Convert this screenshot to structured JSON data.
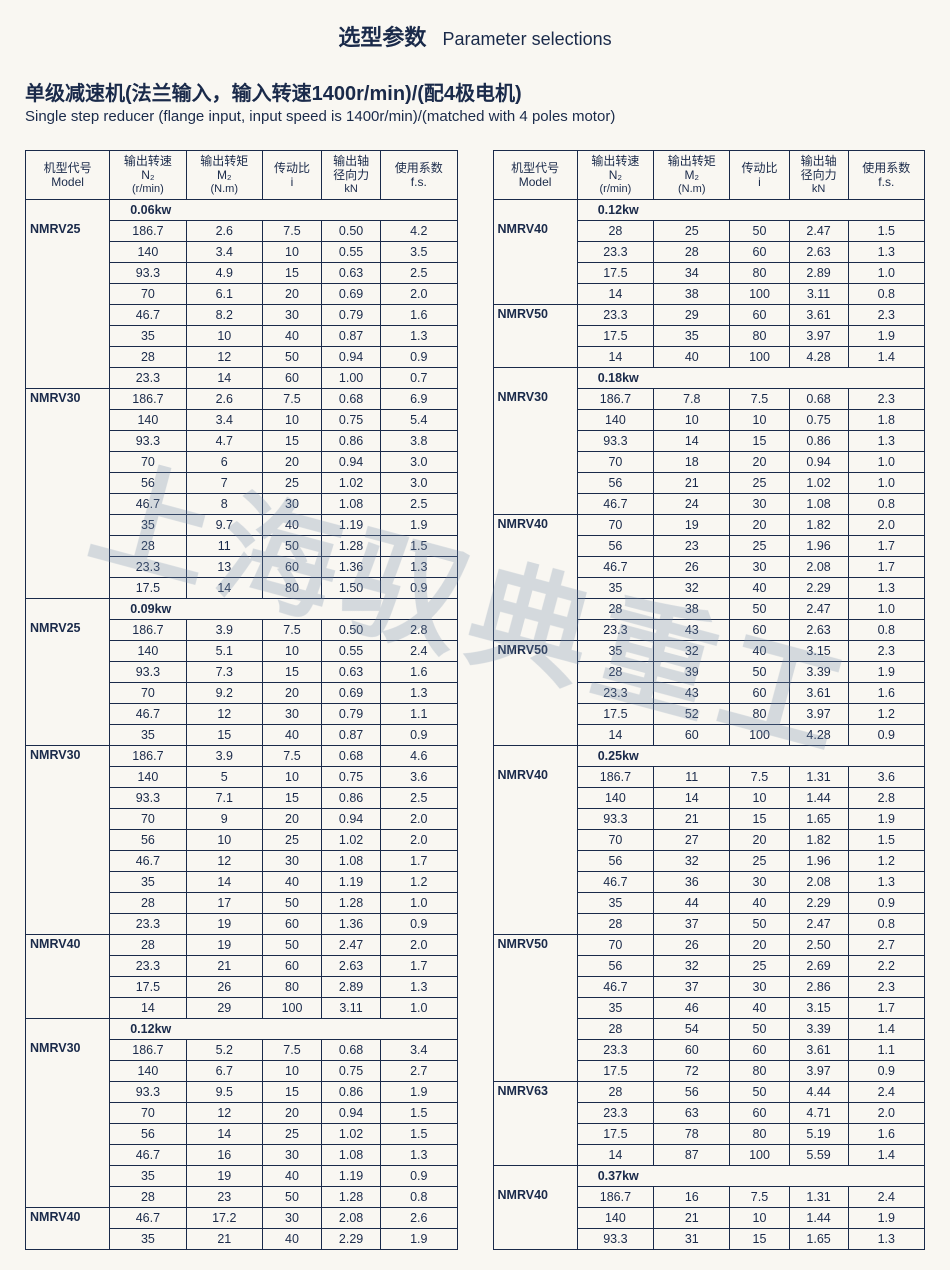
{
  "title_cn": "选型参数",
  "title_en": "Parameter selections",
  "sub_cn": "单级减速机(法兰输入，输入转速1400r/min)/(配4极电机)",
  "sub_en": "Single step reducer (flange input, input speed is 1400r/min)/(matched with 4 poles motor)",
  "watermark": "上海驭典重工",
  "headers": [
    {
      "cn": "机型代号",
      "en": "Model",
      "unit": ""
    },
    {
      "cn": "输出转速",
      "en": "N₂",
      "unit": "(r/min)"
    },
    {
      "cn": "输出转矩",
      "en": "M₂",
      "unit": "(N.m)"
    },
    {
      "cn": "传动比",
      "en": "i",
      "unit": ""
    },
    {
      "cn": "输出轴",
      "en": "径向力",
      "unit": "kN"
    },
    {
      "cn": "使用系数",
      "en": "f.s.",
      "unit": ""
    }
  ],
  "left": [
    {
      "type": "power",
      "label": "0.06kw"
    },
    {
      "type": "row",
      "model": "NMRV25",
      "n": "186.7",
      "m": "2.6",
      "i": "7.5",
      "kn": "0.50",
      "fs": "4.2"
    },
    {
      "type": "row",
      "model": "",
      "n": "140",
      "m": "3.4",
      "i": "10",
      "kn": "0.55",
      "fs": "3.5"
    },
    {
      "type": "row",
      "model": "",
      "n": "93.3",
      "m": "4.9",
      "i": "15",
      "kn": "0.63",
      "fs": "2.5"
    },
    {
      "type": "row",
      "model": "",
      "n": "70",
      "m": "6.1",
      "i": "20",
      "kn": "0.69",
      "fs": "2.0"
    },
    {
      "type": "row",
      "model": "",
      "n": "46.7",
      "m": "8.2",
      "i": "30",
      "kn": "0.79",
      "fs": "1.6"
    },
    {
      "type": "row",
      "model": "",
      "n": "35",
      "m": "10",
      "i": "40",
      "kn": "0.87",
      "fs": "1.3"
    },
    {
      "type": "row",
      "model": "",
      "n": "28",
      "m": "12",
      "i": "50",
      "kn": "0.94",
      "fs": "0.9"
    },
    {
      "type": "row",
      "model": "",
      "n": "23.3",
      "m": "14",
      "i": "60",
      "kn": "1.00",
      "fs": "0.7",
      "last": true
    },
    {
      "type": "row",
      "model": "NMRV30",
      "n": "186.7",
      "m": "2.6",
      "i": "7.5",
      "kn": "0.68",
      "fs": "6.9"
    },
    {
      "type": "row",
      "model": "",
      "n": "140",
      "m": "3.4",
      "i": "10",
      "kn": "0.75",
      "fs": "5.4"
    },
    {
      "type": "row",
      "model": "",
      "n": "93.3",
      "m": "4.7",
      "i": "15",
      "kn": "0.86",
      "fs": "3.8"
    },
    {
      "type": "row",
      "model": "",
      "n": "70",
      "m": "6",
      "i": "20",
      "kn": "0.94",
      "fs": "3.0"
    },
    {
      "type": "row",
      "model": "",
      "n": "56",
      "m": "7",
      "i": "25",
      "kn": "1.02",
      "fs": "3.0"
    },
    {
      "type": "row",
      "model": "",
      "n": "46.7",
      "m": "8",
      "i": "30",
      "kn": "1.08",
      "fs": "2.5"
    },
    {
      "type": "row",
      "model": "",
      "n": "35",
      "m": "9.7",
      "i": "40",
      "kn": "1.19",
      "fs": "1.9"
    },
    {
      "type": "row",
      "model": "",
      "n": "28",
      "m": "11",
      "i": "50",
      "kn": "1.28",
      "fs": "1.5"
    },
    {
      "type": "row",
      "model": "",
      "n": "23.3",
      "m": "13",
      "i": "60",
      "kn": "1.36",
      "fs": "1.3"
    },
    {
      "type": "row",
      "model": "",
      "n": "17.5",
      "m": "14",
      "i": "80",
      "kn": "1.50",
      "fs": "0.9",
      "last": true
    },
    {
      "type": "power",
      "label": "0.09kw"
    },
    {
      "type": "row",
      "model": "NMRV25",
      "n": "186.7",
      "m": "3.9",
      "i": "7.5",
      "kn": "0.50",
      "fs": "2.8"
    },
    {
      "type": "row",
      "model": "",
      "n": "140",
      "m": "5.1",
      "i": "10",
      "kn": "0.55",
      "fs": "2.4"
    },
    {
      "type": "row",
      "model": "",
      "n": "93.3",
      "m": "7.3",
      "i": "15",
      "kn": "0.63",
      "fs": "1.6"
    },
    {
      "type": "row",
      "model": "",
      "n": "70",
      "m": "9.2",
      "i": "20",
      "kn": "0.69",
      "fs": "1.3"
    },
    {
      "type": "row",
      "model": "",
      "n": "46.7",
      "m": "12",
      "i": "30",
      "kn": "0.79",
      "fs": "1.1"
    },
    {
      "type": "row",
      "model": "",
      "n": "35",
      "m": "15",
      "i": "40",
      "kn": "0.87",
      "fs": "0.9",
      "last": true
    },
    {
      "type": "row",
      "model": "NMRV30",
      "n": "186.7",
      "m": "3.9",
      "i": "7.5",
      "kn": "0.68",
      "fs": "4.6"
    },
    {
      "type": "row",
      "model": "",
      "n": "140",
      "m": "5",
      "i": "10",
      "kn": "0.75",
      "fs": "3.6"
    },
    {
      "type": "row",
      "model": "",
      "n": "93.3",
      "m": "7.1",
      "i": "15",
      "kn": "0.86",
      "fs": "2.5"
    },
    {
      "type": "row",
      "model": "",
      "n": "70",
      "m": "9",
      "i": "20",
      "kn": "0.94",
      "fs": "2.0"
    },
    {
      "type": "row",
      "model": "",
      "n": "56",
      "m": "10",
      "i": "25",
      "kn": "1.02",
      "fs": "2.0"
    },
    {
      "type": "row",
      "model": "",
      "n": "46.7",
      "m": "12",
      "i": "30",
      "kn": "1.08",
      "fs": "1.7"
    },
    {
      "type": "row",
      "model": "",
      "n": "35",
      "m": "14",
      "i": "40",
      "kn": "1.19",
      "fs": "1.2"
    },
    {
      "type": "row",
      "model": "",
      "n": "28",
      "m": "17",
      "i": "50",
      "kn": "1.28",
      "fs": "1.0"
    },
    {
      "type": "row",
      "model": "",
      "n": "23.3",
      "m": "19",
      "i": "60",
      "kn": "1.36",
      "fs": "0.9",
      "last": true
    },
    {
      "type": "row",
      "model": "NMRV40",
      "n": "28",
      "m": "19",
      "i": "50",
      "kn": "2.47",
      "fs": "2.0"
    },
    {
      "type": "row",
      "model": "",
      "n": "23.3",
      "m": "21",
      "i": "60",
      "kn": "2.63",
      "fs": "1.7"
    },
    {
      "type": "row",
      "model": "",
      "n": "17.5",
      "m": "26",
      "i": "80",
      "kn": "2.89",
      "fs": "1.3"
    },
    {
      "type": "row",
      "model": "",
      "n": "14",
      "m": "29",
      "i": "100",
      "kn": "3.11",
      "fs": "1.0",
      "last": true
    },
    {
      "type": "power",
      "label": "0.12kw"
    },
    {
      "type": "row",
      "model": "NMRV30",
      "n": "186.7",
      "m": "5.2",
      "i": "7.5",
      "kn": "0.68",
      "fs": "3.4"
    },
    {
      "type": "row",
      "model": "",
      "n": "140",
      "m": "6.7",
      "i": "10",
      "kn": "0.75",
      "fs": "2.7"
    },
    {
      "type": "row",
      "model": "",
      "n": "93.3",
      "m": "9.5",
      "i": "15",
      "kn": "0.86",
      "fs": "1.9"
    },
    {
      "type": "row",
      "model": "",
      "n": "70",
      "m": "12",
      "i": "20",
      "kn": "0.94",
      "fs": "1.5"
    },
    {
      "type": "row",
      "model": "",
      "n": "56",
      "m": "14",
      "i": "25",
      "kn": "1.02",
      "fs": "1.5"
    },
    {
      "type": "row",
      "model": "",
      "n": "46.7",
      "m": "16",
      "i": "30",
      "kn": "1.08",
      "fs": "1.3"
    },
    {
      "type": "row",
      "model": "",
      "n": "35",
      "m": "19",
      "i": "40",
      "kn": "1.19",
      "fs": "0.9"
    },
    {
      "type": "row",
      "model": "",
      "n": "28",
      "m": "23",
      "i": "50",
      "kn": "1.28",
      "fs": "0.8",
      "last": true
    },
    {
      "type": "row",
      "model": "NMRV40",
      "n": "46.7",
      "m": "17.2",
      "i": "30",
      "kn": "2.08",
      "fs": "2.6"
    },
    {
      "type": "row",
      "model": "",
      "n": "35",
      "m": "21",
      "i": "40",
      "kn": "2.29",
      "fs": "1.9",
      "last": true
    }
  ],
  "right": [
    {
      "type": "power",
      "label": "0.12kw"
    },
    {
      "type": "row",
      "model": "NMRV40",
      "n": "28",
      "m": "25",
      "i": "50",
      "kn": "2.47",
      "fs": "1.5"
    },
    {
      "type": "row",
      "model": "",
      "n": "23.3",
      "m": "28",
      "i": "60",
      "kn": "2.63",
      "fs": "1.3"
    },
    {
      "type": "row",
      "model": "",
      "n": "17.5",
      "m": "34",
      "i": "80",
      "kn": "2.89",
      "fs": "1.0"
    },
    {
      "type": "row",
      "model": "",
      "n": "14",
      "m": "38",
      "i": "100",
      "kn": "3.11",
      "fs": "0.8",
      "last": true
    },
    {
      "type": "row",
      "model": "NMRV50",
      "n": "23.3",
      "m": "29",
      "i": "60",
      "kn": "3.61",
      "fs": "2.3"
    },
    {
      "type": "row",
      "model": "",
      "n": "17.5",
      "m": "35",
      "i": "80",
      "kn": "3.97",
      "fs": "1.9"
    },
    {
      "type": "row",
      "model": "",
      "n": "14",
      "m": "40",
      "i": "100",
      "kn": "4.28",
      "fs": "1.4",
      "last": true
    },
    {
      "type": "power",
      "label": "0.18kw"
    },
    {
      "type": "row",
      "model": "NMRV30",
      "n": "186.7",
      "m": "7.8",
      "i": "7.5",
      "kn": "0.68",
      "fs": "2.3"
    },
    {
      "type": "row",
      "model": "",
      "n": "140",
      "m": "10",
      "i": "10",
      "kn": "0.75",
      "fs": "1.8"
    },
    {
      "type": "row",
      "model": "",
      "n": "93.3",
      "m": "14",
      "i": "15",
      "kn": "0.86",
      "fs": "1.3"
    },
    {
      "type": "row",
      "model": "",
      "n": "70",
      "m": "18",
      "i": "20",
      "kn": "0.94",
      "fs": "1.0"
    },
    {
      "type": "row",
      "model": "",
      "n": "56",
      "m": "21",
      "i": "25",
      "kn": "1.02",
      "fs": "1.0"
    },
    {
      "type": "row",
      "model": "",
      "n": "46.7",
      "m": "24",
      "i": "30",
      "kn": "1.08",
      "fs": "0.8",
      "last": true
    },
    {
      "type": "row",
      "model": "NMRV40",
      "n": "70",
      "m": "19",
      "i": "20",
      "kn": "1.82",
      "fs": "2.0"
    },
    {
      "type": "row",
      "model": "",
      "n": "56",
      "m": "23",
      "i": "25",
      "kn": "1.96",
      "fs": "1.7"
    },
    {
      "type": "row",
      "model": "",
      "n": "46.7",
      "m": "26",
      "i": "30",
      "kn": "2.08",
      "fs": "1.7"
    },
    {
      "type": "row",
      "model": "",
      "n": "35",
      "m": "32",
      "i": "40",
      "kn": "2.29",
      "fs": "1.3"
    },
    {
      "type": "row",
      "model": "",
      "n": "28",
      "m": "38",
      "i": "50",
      "kn": "2.47",
      "fs": "1.0"
    },
    {
      "type": "row",
      "model": "",
      "n": "23.3",
      "m": "43",
      "i": "60",
      "kn": "2.63",
      "fs": "0.8",
      "last": true
    },
    {
      "type": "row",
      "model": "NMRV50",
      "n": "35",
      "m": "32",
      "i": "40",
      "kn": "3.15",
      "fs": "2.3"
    },
    {
      "type": "row",
      "model": "",
      "n": "28",
      "m": "39",
      "i": "50",
      "kn": "3.39",
      "fs": "1.9"
    },
    {
      "type": "row",
      "model": "",
      "n": "23.3",
      "m": "43",
      "i": "60",
      "kn": "3.61",
      "fs": "1.6"
    },
    {
      "type": "row",
      "model": "",
      "n": "17.5",
      "m": "52",
      "i": "80",
      "kn": "3.97",
      "fs": "1.2"
    },
    {
      "type": "row",
      "model": "",
      "n": "14",
      "m": "60",
      "i": "100",
      "kn": "4.28",
      "fs": "0.9",
      "last": true
    },
    {
      "type": "power",
      "label": "0.25kw"
    },
    {
      "type": "row",
      "model": "NMRV40",
      "n": "186.7",
      "m": "11",
      "i": "7.5",
      "kn": "1.31",
      "fs": "3.6"
    },
    {
      "type": "row",
      "model": "",
      "n": "140",
      "m": "14",
      "i": "10",
      "kn": "1.44",
      "fs": "2.8"
    },
    {
      "type": "row",
      "model": "",
      "n": "93.3",
      "m": "21",
      "i": "15",
      "kn": "1.65",
      "fs": "1.9"
    },
    {
      "type": "row",
      "model": "",
      "n": "70",
      "m": "27",
      "i": "20",
      "kn": "1.82",
      "fs": "1.5"
    },
    {
      "type": "row",
      "model": "",
      "n": "56",
      "m": "32",
      "i": "25",
      "kn": "1.96",
      "fs": "1.2"
    },
    {
      "type": "row",
      "model": "",
      "n": "46.7",
      "m": "36",
      "i": "30",
      "kn": "2.08",
      "fs": "1.3"
    },
    {
      "type": "row",
      "model": "",
      "n": "35",
      "m": "44",
      "i": "40",
      "kn": "2.29",
      "fs": "0.9"
    },
    {
      "type": "row",
      "model": "",
      "n": "28",
      "m": "37",
      "i": "50",
      "kn": "2.47",
      "fs": "0.8",
      "last": true
    },
    {
      "type": "row",
      "model": "NMRV50",
      "n": "70",
      "m": "26",
      "i": "20",
      "kn": "2.50",
      "fs": "2.7"
    },
    {
      "type": "row",
      "model": "",
      "n": "56",
      "m": "32",
      "i": "25",
      "kn": "2.69",
      "fs": "2.2"
    },
    {
      "type": "row",
      "model": "",
      "n": "46.7",
      "m": "37",
      "i": "30",
      "kn": "2.86",
      "fs": "2.3"
    },
    {
      "type": "row",
      "model": "",
      "n": "35",
      "m": "46",
      "i": "40",
      "kn": "3.15",
      "fs": "1.7"
    },
    {
      "type": "row",
      "model": "",
      "n": "28",
      "m": "54",
      "i": "50",
      "kn": "3.39",
      "fs": "1.4"
    },
    {
      "type": "row",
      "model": "",
      "n": "23.3",
      "m": "60",
      "i": "60",
      "kn": "3.61",
      "fs": "1.1"
    },
    {
      "type": "row",
      "model": "",
      "n": "17.5",
      "m": "72",
      "i": "80",
      "kn": "3.97",
      "fs": "0.9",
      "last": true
    },
    {
      "type": "row",
      "model": "NMRV63",
      "n": "28",
      "m": "56",
      "i": "50",
      "kn": "4.44",
      "fs": "2.4"
    },
    {
      "type": "row",
      "model": "",
      "n": "23.3",
      "m": "63",
      "i": "60",
      "kn": "4.71",
      "fs": "2.0"
    },
    {
      "type": "row",
      "model": "",
      "n": "17.5",
      "m": "78",
      "i": "80",
      "kn": "5.19",
      "fs": "1.6"
    },
    {
      "type": "row",
      "model": "",
      "n": "14",
      "m": "87",
      "i": "100",
      "kn": "5.59",
      "fs": "1.4",
      "last": true
    },
    {
      "type": "power",
      "label": "0.37kw"
    },
    {
      "type": "row",
      "model": "NMRV40",
      "n": "186.7",
      "m": "16",
      "i": "7.5",
      "kn": "1.31",
      "fs": "2.4"
    },
    {
      "type": "row",
      "model": "",
      "n": "140",
      "m": "21",
      "i": "10",
      "kn": "1.44",
      "fs": "1.9"
    },
    {
      "type": "row",
      "model": "",
      "n": "93.3",
      "m": "31",
      "i": "15",
      "kn": "1.65",
      "fs": "1.3",
      "last": true
    }
  ]
}
